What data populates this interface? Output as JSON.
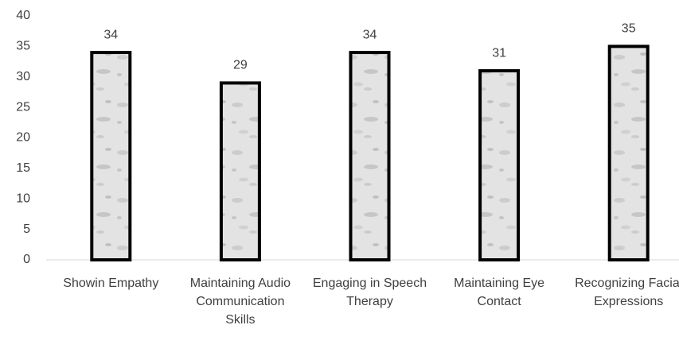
{
  "chart_data": {
    "type": "bar",
    "categories": [
      "Showin Empathy",
      "Maintaining Audio Communication Skills",
      "Engaging in Speech Therapy",
      "Maintaining Eye Contact",
      "Recognizing Facial Expressions"
    ],
    "values": [
      34,
      29,
      34,
      31,
      35
    ],
    "color": "#e3e3e3",
    "ylim": [
      0,
      40
    ],
    "yticks": [
      0,
      5,
      10,
      15,
      20,
      25,
      30,
      35,
      40
    ],
    "grid": false
  }
}
